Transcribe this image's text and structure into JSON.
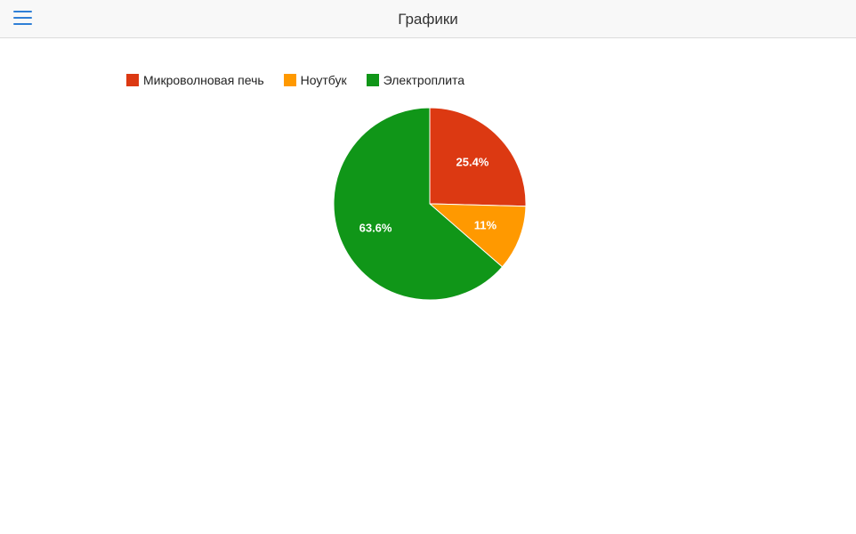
{
  "header": {
    "title": "Графики"
  },
  "chart_data": {
    "type": "pie",
    "legend_position": "top-left",
    "slices": [
      {
        "name": "Микроволновая печь",
        "value": 25.4,
        "label": "25.4%",
        "color": "#dc3912"
      },
      {
        "name": "Ноутбук",
        "value": 11,
        "label": "11%",
        "color": "#ff9900"
      },
      {
        "name": "Электроплита",
        "value": 63.6,
        "label": "63.6%",
        "color": "#109618"
      }
    ]
  }
}
